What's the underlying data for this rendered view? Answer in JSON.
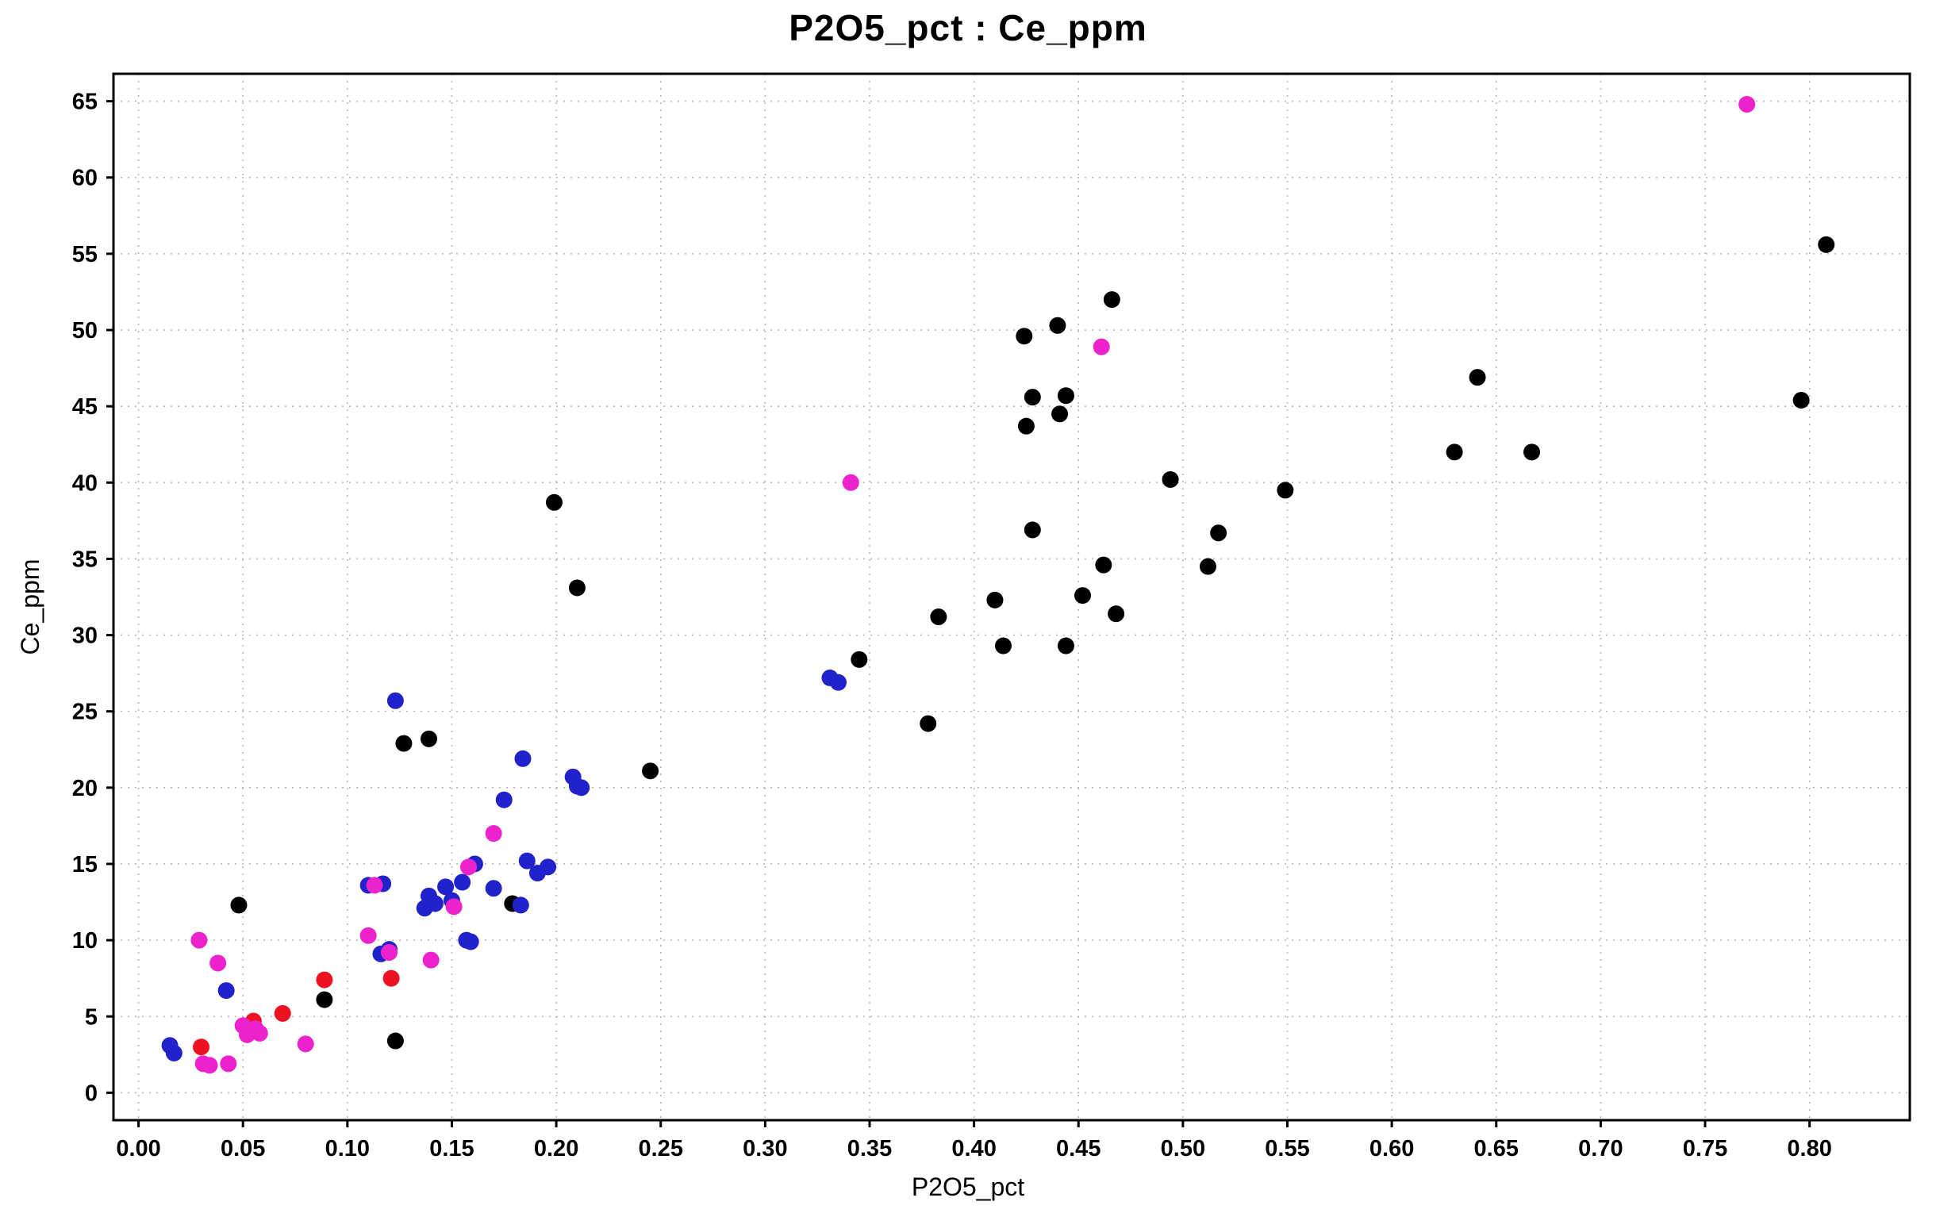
{
  "chart": {
    "title": "P2O5_pct : Ce_ppm",
    "xlabel": "P2O5_pct",
    "ylabel": "Ce_ppm"
  },
  "chart_data": {
    "type": "scatter",
    "title": "P2O5_pct : Ce_ppm",
    "xlabel": "P2O5_pct",
    "ylabel": "Ce_ppm",
    "xlim": [
      -0.012,
      0.848
    ],
    "ylim": [
      -1.8,
      66.8
    ],
    "grid": true,
    "grid_color": "#b8b8b8",
    "frame_color": "#000000",
    "xtick_values": [
      0.0,
      0.05,
      0.1,
      0.15,
      0.2,
      0.25,
      0.3,
      0.35,
      0.4,
      0.45,
      0.5,
      0.55,
      0.6,
      0.65,
      0.7,
      0.75,
      0.8
    ],
    "xtick_labels": [
      "0.00",
      "0.05",
      "0.10",
      "0.15",
      "0.20",
      "0.25",
      "0.30",
      "0.35",
      "0.40",
      "0.45",
      "0.50",
      "0.55",
      "0.60",
      "0.65",
      "0.70",
      "0.75",
      "0.80"
    ],
    "ytick_values": [
      0,
      5,
      10,
      15,
      20,
      25,
      30,
      35,
      40,
      45,
      50,
      55,
      60,
      65
    ],
    "ytick_labels": [
      "0",
      "5",
      "10",
      "15",
      "20",
      "25",
      "30",
      "35",
      "40",
      "45",
      "50",
      "55",
      "60",
      "65"
    ],
    "marker_radius": 10.5,
    "series": [
      {
        "name": "black",
        "color": "#000000",
        "points": [
          [
            0.048,
            12.3
          ],
          [
            0.089,
            6.1
          ],
          [
            0.123,
            3.4
          ],
          [
            0.127,
            22.9
          ],
          [
            0.139,
            23.2
          ],
          [
            0.179,
            12.4
          ],
          [
            0.199,
            38.7
          ],
          [
            0.21,
            33.1
          ],
          [
            0.245,
            21.1
          ],
          [
            0.345,
            28.4
          ],
          [
            0.378,
            24.2
          ],
          [
            0.383,
            31.2
          ],
          [
            0.41,
            32.3
          ],
          [
            0.414,
            29.3
          ],
          [
            0.424,
            49.6
          ],
          [
            0.425,
            43.7
          ],
          [
            0.428,
            45.6
          ],
          [
            0.428,
            36.9
          ],
          [
            0.44,
            50.3
          ],
          [
            0.441,
            44.5
          ],
          [
            0.444,
            45.7
          ],
          [
            0.444,
            29.3
          ],
          [
            0.452,
            32.6
          ],
          [
            0.462,
            34.6
          ],
          [
            0.466,
            52.0
          ],
          [
            0.468,
            31.4
          ],
          [
            0.494,
            40.2
          ],
          [
            0.512,
            34.5
          ],
          [
            0.517,
            36.7
          ],
          [
            0.549,
            39.5
          ],
          [
            0.63,
            42.0
          ],
          [
            0.641,
            46.9
          ],
          [
            0.667,
            42.0
          ],
          [
            0.796,
            45.4
          ],
          [
            0.808,
            55.6
          ]
        ]
      },
      {
        "name": "blue",
        "color": "#2222cc",
        "points": [
          [
            0.015,
            3.1
          ],
          [
            0.017,
            2.6
          ],
          [
            0.042,
            6.7
          ],
          [
            0.11,
            13.6
          ],
          [
            0.117,
            13.7
          ],
          [
            0.116,
            9.1
          ],
          [
            0.12,
            9.4
          ],
          [
            0.123,
            25.7
          ],
          [
            0.137,
            12.1
          ],
          [
            0.139,
            12.9
          ],
          [
            0.142,
            12.4
          ],
          [
            0.147,
            13.5
          ],
          [
            0.15,
            12.6
          ],
          [
            0.155,
            13.8
          ],
          [
            0.157,
            10.0
          ],
          [
            0.159,
            9.9
          ],
          [
            0.161,
            15.0
          ],
          [
            0.17,
            13.4
          ],
          [
            0.175,
            19.2
          ],
          [
            0.183,
            12.3
          ],
          [
            0.184,
            21.9
          ],
          [
            0.186,
            15.2
          ],
          [
            0.191,
            14.4
          ],
          [
            0.196,
            14.8
          ],
          [
            0.208,
            20.7
          ],
          [
            0.21,
            20.1
          ],
          [
            0.212,
            20.0
          ],
          [
            0.331,
            27.2
          ],
          [
            0.335,
            26.9
          ]
        ]
      },
      {
        "name": "red",
        "color": "#ee1122",
        "points": [
          [
            0.03,
            3.0
          ],
          [
            0.055,
            4.7
          ],
          [
            0.069,
            5.2
          ],
          [
            0.089,
            7.4
          ],
          [
            0.121,
            7.5
          ]
        ]
      },
      {
        "name": "magenta",
        "color": "#ee22cc",
        "points": [
          [
            0.029,
            10.0
          ],
          [
            0.031,
            1.9
          ],
          [
            0.034,
            1.8
          ],
          [
            0.038,
            8.5
          ],
          [
            0.043,
            1.9
          ],
          [
            0.05,
            4.4
          ],
          [
            0.052,
            3.8
          ],
          [
            0.056,
            4.2
          ],
          [
            0.058,
            3.9
          ],
          [
            0.08,
            3.2
          ],
          [
            0.11,
            10.3
          ],
          [
            0.113,
            13.6
          ],
          [
            0.12,
            9.2
          ],
          [
            0.14,
            8.7
          ],
          [
            0.151,
            12.2
          ],
          [
            0.158,
            14.8
          ],
          [
            0.17,
            17.0
          ],
          [
            0.341,
            40.0
          ],
          [
            0.461,
            48.9
          ],
          [
            0.77,
            64.8
          ]
        ]
      }
    ]
  }
}
